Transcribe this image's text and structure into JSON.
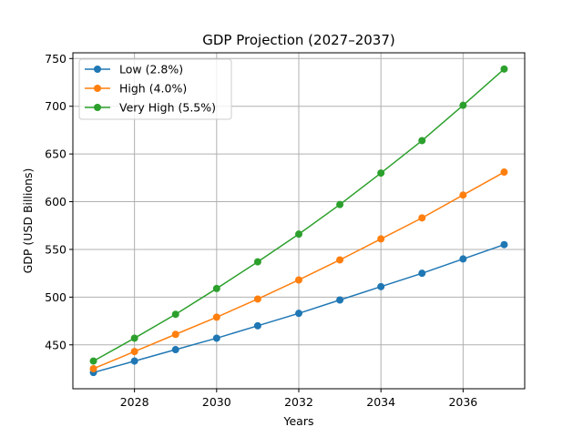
{
  "chart_data": {
    "type": "line",
    "title": "GDP Projection (2027–2037)",
    "xlabel": "Years",
    "ylabel": "GDP (USD Billions)",
    "x": [
      2027,
      2028,
      2029,
      2030,
      2031,
      2032,
      2033,
      2034,
      2035,
      2036,
      2037
    ],
    "xlim": [
      2026.5,
      2037.5
    ],
    "ylim": [
      404,
      756
    ],
    "xticks": [
      2028,
      2030,
      2032,
      2034,
      2036
    ],
    "yticks": [
      450,
      500,
      550,
      600,
      650,
      700,
      750
    ],
    "grid": true,
    "legend_position": "top-left",
    "series": [
      {
        "name": "Low (2.8%)",
        "color": "#1f77b4",
        "marker": "circle",
        "values": [
          421,
          433,
          445,
          457,
          470,
          483,
          497,
          511,
          525,
          540,
          555
        ]
      },
      {
        "name": "High (4.0%)",
        "color": "#ff7f0e",
        "marker": "circle",
        "values": [
          425,
          443,
          461,
          479,
          498,
          518,
          539,
          561,
          583,
          607,
          631
        ]
      },
      {
        "name": "Very High (5.5%)",
        "color": "#2ca02c",
        "marker": "circle",
        "values": [
          433,
          457,
          482,
          509,
          537,
          566,
          597,
          630,
          664,
          701,
          739
        ]
      }
    ]
  }
}
